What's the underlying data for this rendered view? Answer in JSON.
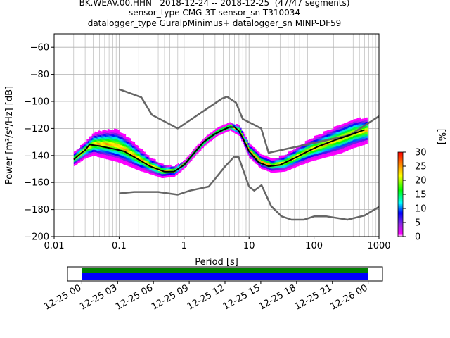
{
  "title_lines": [
    "BK.WEAV.00.HHN   2018-12-24 -- 2018-12-25  (47/47 segments)",
    "sensor_type CMG-3T sensor_sn T310034",
    "datalogger_type GuralpMinimus+ datalogger_sn MINP-DF59"
  ],
  "chart_data": [
    {
      "type": "heatmap",
      "xlabel": "Period [s]",
      "ylabel": "Power [m²/s⁴/Hz] [dB]",
      "xscale": "log",
      "xlim": [
        0.01,
        1000
      ],
      "ylim": [
        -200,
        -50
      ],
      "x_ticks": [
        {
          "value": 0.01,
          "label": "0.01"
        },
        {
          "value": 0.1,
          "label": "0.1"
        },
        {
          "value": 1,
          "label": "1"
        },
        {
          "value": 10,
          "label": "10"
        },
        {
          "value": 100,
          "label": "100"
        },
        {
          "value": 1000,
          "label": "1000"
        }
      ],
      "y_ticks": [
        {
          "value": -60,
          "label": "−60"
        },
        {
          "value": -80,
          "label": "−80"
        },
        {
          "value": -100,
          "label": "−100"
        },
        {
          "value": -120,
          "label": "−120"
        },
        {
          "value": -140,
          "label": "−140"
        },
        {
          "value": -160,
          "label": "−160"
        },
        {
          "value": -180,
          "label": "−180"
        },
        {
          "value": -200,
          "label": "−200"
        }
      ],
      "grid": true,
      "series": [
        {
          "role": "new_high_noise_model",
          "color": "#666666",
          "points": [
            [
              0.1,
              -91
            ],
            [
              0.17,
              -95
            ],
            [
              0.22,
              -97
            ],
            [
              0.32,
              -110
            ],
            [
              0.8,
              -120
            ],
            [
              3.8,
              -98
            ],
            [
              4.6,
              -96.5
            ],
            [
              6.3,
              -101
            ],
            [
              8,
              -113
            ],
            [
              15.4,
              -120
            ],
            [
              20,
              -138
            ],
            [
              354,
              -125
            ],
            [
              1000,
              -111
            ]
          ]
        },
        {
          "role": "new_low_noise_model",
          "color": "#666666",
          "points": [
            [
              0.1,
              -168
            ],
            [
              0.17,
              -167
            ],
            [
              0.4,
              -167
            ],
            [
              0.8,
              -169
            ],
            [
              1.24,
              -166
            ],
            [
              2.4,
              -163
            ],
            [
              4.3,
              -148
            ],
            [
              5.9,
              -141
            ],
            [
              6.9,
              -141
            ],
            [
              7.9,
              -149
            ],
            [
              10,
              -163
            ],
            [
              12,
              -166
            ],
            [
              15.6,
              -162
            ],
            [
              21.9,
              -177.5
            ],
            [
              31.6,
              -185
            ],
            [
              45,
              -187.5
            ],
            [
              70,
              -187.5
            ],
            [
              101,
              -185
            ],
            [
              154,
              -185
            ],
            [
              328,
              -187.5
            ],
            [
              600,
              -184.4
            ],
            [
              1000,
              -178
            ]
          ]
        },
        {
          "role": "mode",
          "color": "#000000",
          "points": [
            [
              0.02,
              -143
            ],
            [
              0.025,
              -139
            ],
            [
              0.03,
              -136
            ],
            [
              0.035,
              -132
            ],
            [
              0.05,
              -133
            ],
            [
              0.08,
              -135
            ],
            [
              0.12,
              -137
            ],
            [
              0.2,
              -143
            ],
            [
              0.3,
              -148
            ],
            [
              0.5,
              -152
            ],
            [
              0.7,
              -152
            ],
            [
              1,
              -147
            ],
            [
              1.5,
              -137
            ],
            [
              2,
              -130
            ],
            [
              3,
              -124
            ],
            [
              4,
              -121
            ],
            [
              5,
              -119
            ],
            [
              6,
              -119
            ],
            [
              7,
              -122
            ],
            [
              8,
              -127
            ],
            [
              10,
              -137
            ],
            [
              14,
              -145
            ],
            [
              20,
              -148
            ],
            [
              30,
              -147
            ],
            [
              50,
              -142
            ],
            [
              80,
              -137
            ],
            [
              120,
              -133
            ],
            [
              200,
              -129
            ],
            [
              350,
              -125
            ],
            [
              600,
              -121
            ]
          ]
        }
      ],
      "density": [
        {
          "period": 0.02,
          "center": -143,
          "half_width": 4
        },
        {
          "period": 0.03,
          "center": -136,
          "half_width": 5
        },
        {
          "period": 0.04,
          "center": -132,
          "half_width": 7
        },
        {
          "period": 0.06,
          "center": -132,
          "half_width": 9
        },
        {
          "period": 0.09,
          "center": -133,
          "half_width": 10
        },
        {
          "period": 0.13,
          "center": -137,
          "half_width": 9
        },
        {
          "period": 0.2,
          "center": -143,
          "half_width": 7
        },
        {
          "period": 0.3,
          "center": -148,
          "half_width": 5
        },
        {
          "period": 0.45,
          "center": -152,
          "half_width": 4
        },
        {
          "period": 0.7,
          "center": -152,
          "half_width": 3
        },
        {
          "period": 1,
          "center": -147,
          "half_width": 2
        },
        {
          "period": 1.5,
          "center": -137,
          "half_width": 2
        },
        {
          "period": 2.2,
          "center": -129,
          "half_width": 2
        },
        {
          "period": 3.2,
          "center": -123,
          "half_width": 2
        },
        {
          "period": 5,
          "center": -119,
          "half_width": 2
        },
        {
          "period": 7,
          "center": -122,
          "half_width": 3
        },
        {
          "period": 10,
          "center": -137,
          "half_width": 4
        },
        {
          "period": 15,
          "center": -145,
          "half_width": 4
        },
        {
          "period": 22,
          "center": -148,
          "half_width": 4
        },
        {
          "period": 35,
          "center": -146,
          "half_width": 5
        },
        {
          "period": 55,
          "center": -141,
          "half_width": 6
        },
        {
          "period": 90,
          "center": -136,
          "half_width": 7
        },
        {
          "period": 150,
          "center": -132,
          "half_width": 8
        },
        {
          "period": 250,
          "center": -128,
          "half_width": 9
        },
        {
          "period": 400,
          "center": -124,
          "half_width": 9
        },
        {
          "period": 650,
          "center": -122,
          "half_width": 8
        }
      ]
    },
    {
      "type": "colorbar",
      "label": "[%]",
      "range": [
        0,
        30
      ],
      "ticks": [
        "0",
        "5",
        "10",
        "15",
        "20",
        "25",
        "30"
      ]
    },
    {
      "type": "timeline",
      "tick_labels": [
        "12-25 00",
        "12-25 03",
        "12-25 06",
        "12-25 09",
        "12-25 12",
        "12-25 15",
        "12-25 18",
        "12-25 21",
        "12-26 00"
      ],
      "range_hours": [
        -1.2,
        25.2
      ],
      "coverage_hours": [
        0,
        24
      ],
      "bands": [
        {
          "name": "available data",
          "color": "#008000"
        },
        {
          "name": "used segments",
          "color": "#0000ff"
        }
      ]
    }
  ]
}
